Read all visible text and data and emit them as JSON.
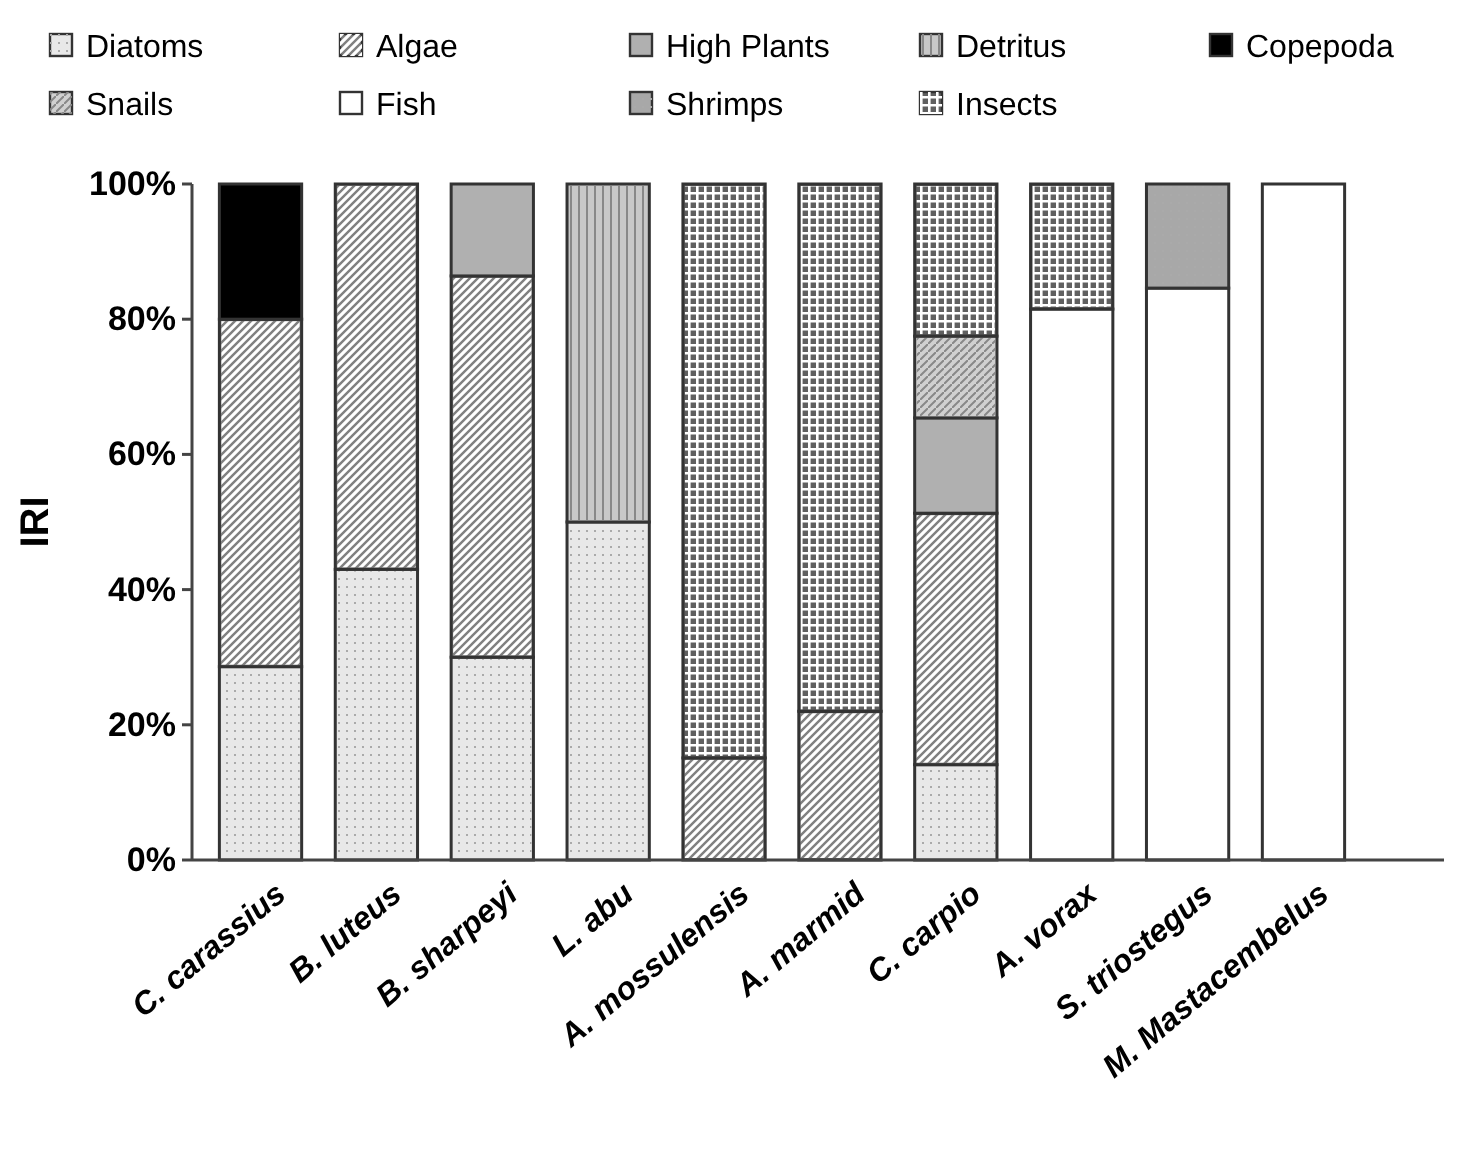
{
  "chart_data": {
    "type": "bar",
    "stacked": true,
    "ylabel": "IRI",
    "legend": "top",
    "categories": [
      "C. carassius",
      "B. luteus",
      "B. sharpeyi",
      "L. abu",
      "A. mossulensis",
      "A. marmid",
      "C. carpio",
      "A. vorax",
      "S. triostegus",
      "M. Mastacembelus"
    ],
    "ylim": [
      0,
      100
    ],
    "yticks": [
      {
        "value": 0,
        "label": "0%"
      },
      {
        "value": 20,
        "label": "20%"
      },
      {
        "value": 40,
        "label": "40%"
      },
      {
        "value": 60,
        "label": "60%"
      },
      {
        "value": 80,
        "label": "80%"
      },
      {
        "value": 100,
        "label": "100%"
      }
    ],
    "series": [
      {
        "name": "Diatoms",
        "color": "#e8e8e8",
        "values": [
          28.6,
          43,
          30,
          50,
          0,
          0,
          14.1,
          0,
          0,
          0
        ]
      },
      {
        "name": "Algae",
        "color": "#808080",
        "values": [
          51.4,
          57,
          56.4,
          0,
          15.1,
          22,
          37.2,
          0,
          0,
          0
        ]
      },
      {
        "name": "High Plants",
        "color": "#b0b0b0",
        "values": [
          0,
          0,
          13.6,
          0,
          0,
          0,
          14.1,
          0,
          0,
          0
        ]
      },
      {
        "name": "Detritus",
        "color": "#c8c8c8",
        "values": [
          0,
          0,
          0,
          50,
          0,
          0,
          0,
          0,
          0,
          0
        ]
      },
      {
        "name": "Copepoda",
        "color": "#000000",
        "values": [
          20,
          0,
          0,
          0,
          0,
          0,
          0,
          0,
          0,
          0
        ]
      },
      {
        "name": "Snails",
        "color": "#d0d0d0",
        "values": [
          0,
          0,
          0,
          0,
          0,
          0,
          12.1,
          0,
          0,
          0
        ]
      },
      {
        "name": "Fish",
        "color": "#ffffff",
        "values": [
          0,
          0,
          0,
          0,
          0,
          0,
          0,
          81.5,
          84.6,
          100
        ]
      },
      {
        "name": "Shrimps",
        "color": "#a8a8a8",
        "values": [
          0,
          0,
          0,
          0,
          0,
          0,
          0,
          0,
          15.4,
          0
        ]
      },
      {
        "name": "Insects",
        "color": "#606060",
        "values": [
          0,
          0,
          0,
          0,
          84.9,
          78,
          22.5,
          18.5,
          0,
          0
        ]
      }
    ]
  }
}
